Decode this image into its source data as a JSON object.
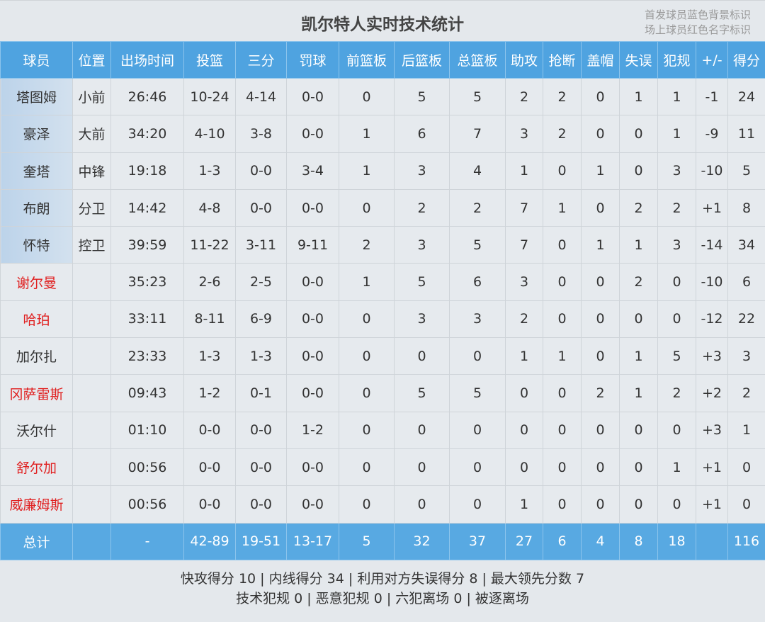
{
  "title": "凯尔特人实时技术统计",
  "legend": [
    "首发球员蓝色背景标识",
    "场上球员红色名字标识"
  ],
  "colors": {
    "header": "#4fa3e0",
    "starter_bg": "#c9dcee",
    "on_court": "#e02020"
  },
  "columns": [
    "球员",
    "位置",
    "出场时间",
    "投篮",
    "三分",
    "罚球",
    "前篮板",
    "后篮板",
    "总篮板",
    "助攻",
    "抢断",
    "盖帽",
    "失误",
    "犯规",
    "+/-",
    "得分"
  ],
  "players": [
    {
      "starter": true,
      "on_court": false,
      "cells": [
        "塔图姆",
        "小前",
        "26:46",
        "10-24",
        "4-14",
        "0-0",
        "0",
        "5",
        "5",
        "2",
        "2",
        "0",
        "1",
        "1",
        "-1",
        "24"
      ]
    },
    {
      "starter": true,
      "on_court": false,
      "cells": [
        "豪泽",
        "大前",
        "34:20",
        "4-10",
        "3-8",
        "0-0",
        "1",
        "6",
        "7",
        "3",
        "2",
        "0",
        "0",
        "1",
        "-9",
        "11"
      ]
    },
    {
      "starter": true,
      "on_court": false,
      "cells": [
        "奎塔",
        "中锋",
        "19:18",
        "1-3",
        "0-0",
        "3-4",
        "1",
        "3",
        "4",
        "1",
        "0",
        "1",
        "0",
        "3",
        "-10",
        "5"
      ]
    },
    {
      "starter": true,
      "on_court": false,
      "cells": [
        "布朗",
        "分卫",
        "14:42",
        "4-8",
        "0-0",
        "0-0",
        "0",
        "2",
        "2",
        "7",
        "1",
        "0",
        "2",
        "2",
        "+1",
        "8"
      ]
    },
    {
      "starter": true,
      "on_court": false,
      "cells": [
        "怀特",
        "控卫",
        "39:59",
        "11-22",
        "3-11",
        "9-11",
        "2",
        "3",
        "5",
        "7",
        "0",
        "1",
        "1",
        "3",
        "-14",
        "34"
      ]
    },
    {
      "starter": false,
      "on_court": true,
      "cells": [
        "谢尔曼",
        "",
        "35:23",
        "2-6",
        "2-5",
        "0-0",
        "1",
        "5",
        "6",
        "3",
        "0",
        "0",
        "2",
        "0",
        "-10",
        "6"
      ]
    },
    {
      "starter": false,
      "on_court": true,
      "cells": [
        "哈珀",
        "",
        "33:11",
        "8-11",
        "6-9",
        "0-0",
        "0",
        "3",
        "3",
        "2",
        "0",
        "0",
        "0",
        "0",
        "-12",
        "22"
      ]
    },
    {
      "starter": false,
      "on_court": false,
      "cells": [
        "加尔扎",
        "",
        "23:33",
        "1-3",
        "1-3",
        "0-0",
        "0",
        "0",
        "0",
        "1",
        "1",
        "0",
        "1",
        "5",
        "+3",
        "3"
      ]
    },
    {
      "starter": false,
      "on_court": true,
      "cells": [
        "冈萨雷斯",
        "",
        "09:43",
        "1-2",
        "0-1",
        "0-0",
        "0",
        "5",
        "5",
        "0",
        "0",
        "2",
        "1",
        "2",
        "+2",
        "2"
      ]
    },
    {
      "starter": false,
      "on_court": false,
      "cells": [
        "沃尔什",
        "",
        "01:10",
        "0-0",
        "0-0",
        "1-2",
        "0",
        "0",
        "0",
        "0",
        "0",
        "0",
        "0",
        "0",
        "+3",
        "1"
      ]
    },
    {
      "starter": false,
      "on_court": true,
      "cells": [
        "舒尔加",
        "",
        "00:56",
        "0-0",
        "0-0",
        "0-0",
        "0",
        "0",
        "0",
        "0",
        "0",
        "0",
        "0",
        "1",
        "+1",
        "0"
      ]
    },
    {
      "starter": false,
      "on_court": true,
      "cells": [
        "威廉姆斯",
        "",
        "00:56",
        "0-0",
        "0-0",
        "0-0",
        "0",
        "0",
        "0",
        "1",
        "0",
        "0",
        "0",
        "0",
        "+1",
        "0"
      ]
    }
  ],
  "total": [
    "总计",
    "",
    "-",
    "42-89",
    "19-51",
    "13-17",
    "5",
    "32",
    "37",
    "27",
    "6",
    "4",
    "8",
    "18",
    "",
    "116"
  ],
  "footer": [
    "快攻得分 10 | 内线得分 34 | 利用对方失误得分 8 | 最大领先分数 7",
    "技术犯规 0 | 恶意犯规 0 | 六犯离场 0 | 被逐离场"
  ]
}
